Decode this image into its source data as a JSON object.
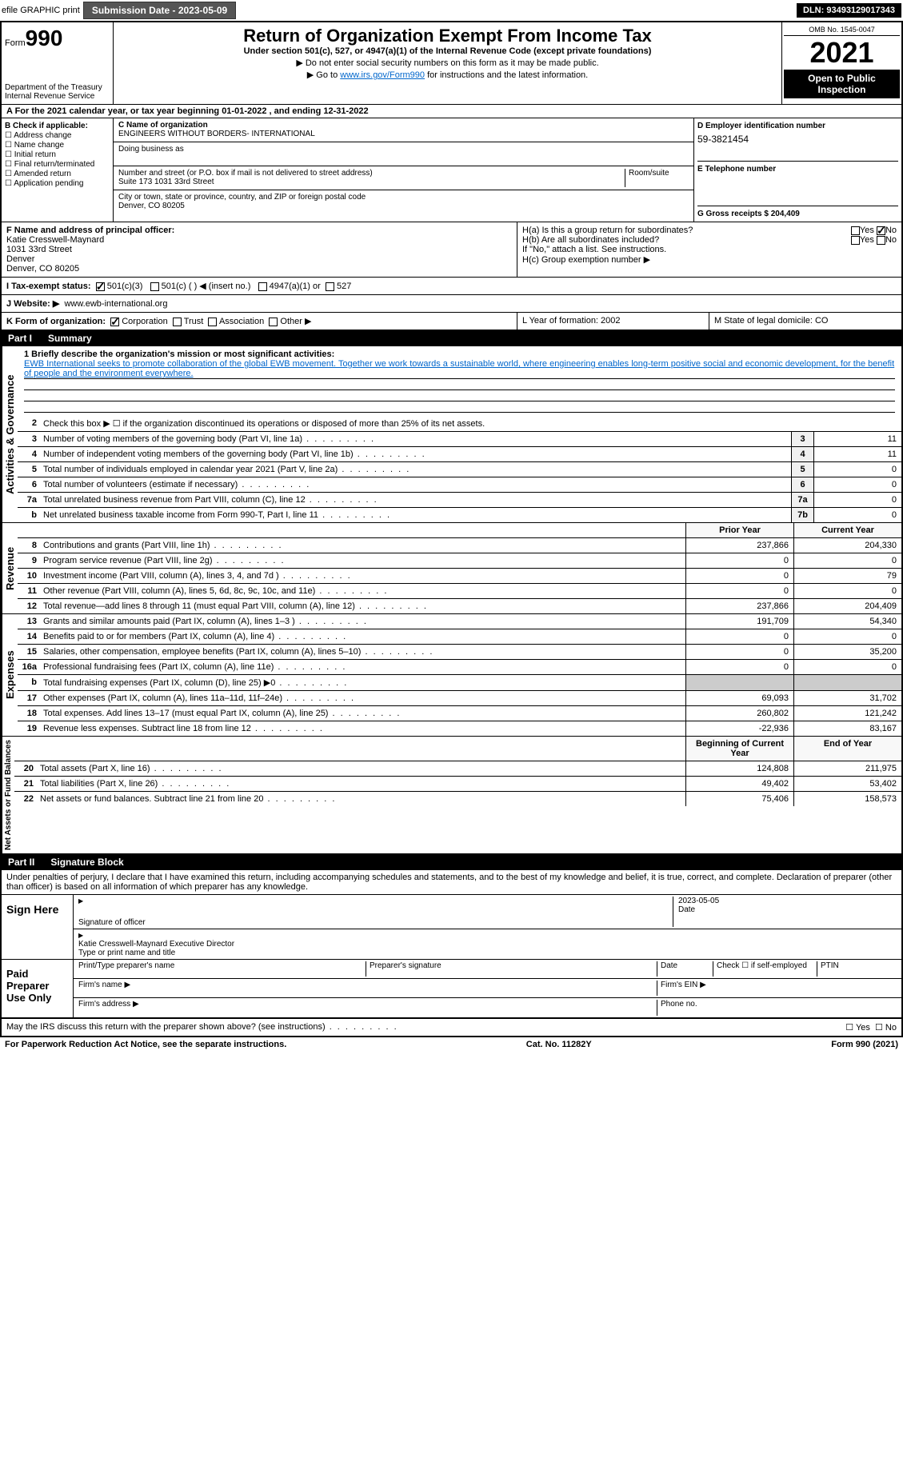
{
  "topbar": {
    "efile": "efile GRAPHIC print",
    "submission_label": "Submission Date - 2023-05-09",
    "dln_label": "DLN: 93493129017343"
  },
  "header": {
    "form_prefix": "Form",
    "form_number": "990",
    "dept1": "Department of the Treasury",
    "dept2": "Internal Revenue Service",
    "title": "Return of Organization Exempt From Income Tax",
    "subtitle": "Under section 501(c), 527, or 4947(a)(1) of the Internal Revenue Code (except private foundations)",
    "note1": "▶ Do not enter social security numbers on this form as it may be made public.",
    "note2_pre": "▶ Go to ",
    "note2_link": "www.irs.gov/Form990",
    "note2_post": " for instructions and the latest information.",
    "omb": "OMB No. 1545-0047",
    "year": "2021",
    "open": "Open to Public Inspection"
  },
  "row_a": "A For the 2021 calendar year, or tax year beginning 01-01-2022    , and ending 12-31-2022",
  "col_b": {
    "header": "B Check if applicable:",
    "opts": [
      "☐ Address change",
      "☐ Name change",
      "☐ Initial return",
      "☐ Final return/terminated",
      "☐ Amended return",
      "☐ Application pending"
    ]
  },
  "col_c": {
    "name_label": "C Name of organization",
    "name": "ENGINEERS WITHOUT BORDERS- INTERNATIONAL",
    "dba_label": "Doing business as",
    "addr_label": "Number and street (or P.O. box if mail is not delivered to street address)",
    "room_label": "Room/suite",
    "addr": "Suite 173 1031 33rd Street",
    "city_label": "City or town, state or province, country, and ZIP or foreign postal code",
    "city": "Denver, CO  80205"
  },
  "col_d": {
    "d_label": "D Employer identification number",
    "ein": "59-3821454",
    "e_label": "E Telephone number",
    "g_label": "G Gross receipts $ 204,409"
  },
  "col_f": {
    "label": "F  Name and address of principal officer:",
    "name": "Katie Cresswell-Maynard",
    "addr1": "1031 33rd Street",
    "addr2": "Denver",
    "addr3": "Denver, CO  80205"
  },
  "col_h": {
    "ha": "H(a)  Is this a group return for subordinates?",
    "hb": "H(b)  Are all subordinates included?",
    "hb_note": "If \"No,\" attach a list. See instructions.",
    "hc": "H(c)  Group exemption number ▶",
    "yes": "Yes",
    "no": "No"
  },
  "row_i": {
    "label": "I    Tax-exempt status:",
    "o1": "501(c)(3)",
    "o2": "501(c) (  ) ◀ (insert no.)",
    "o3": "4947(a)(1) or",
    "o4": "527"
  },
  "row_j": {
    "label": "J   Website: ▶",
    "val": "www.ewb-international.org"
  },
  "row_k": {
    "label": "K Form of organization:",
    "corp": "Corporation",
    "trust": "Trust",
    "assoc": "Association",
    "other": "Other ▶"
  },
  "row_l": {
    "label": "L Year of formation: 2002",
    "m": "M State of legal domicile: CO"
  },
  "part1": {
    "num": "Part I",
    "title": "Summary"
  },
  "summary": {
    "l1_label": "1  Briefly describe the organization's mission or most significant activities:",
    "mission": "EWB International seeks to promote collaboration of the global EWB movement. Together we work towards a sustainable world, where engineering enables long-term positive social and economic development, for the benefit of people and the environment everywhere.",
    "l2": "Check this box ▶ ☐  if the organization discontinued its operations or disposed of more than 25% of its net assets.",
    "rows_gov": [
      {
        "n": "3",
        "t": "Number of voting members of the governing body (Part VI, line 1a)",
        "b": "3",
        "v": "11"
      },
      {
        "n": "4",
        "t": "Number of independent voting members of the governing body (Part VI, line 1b)",
        "b": "4",
        "v": "11"
      },
      {
        "n": "5",
        "t": "Total number of individuals employed in calendar year 2021 (Part V, line 2a)",
        "b": "5",
        "v": "0"
      },
      {
        "n": "6",
        "t": "Total number of volunteers (estimate if necessary)",
        "b": "6",
        "v": "0"
      },
      {
        "n": "7a",
        "t": "Total unrelated business revenue from Part VIII, column (C), line 12",
        "b": "7a",
        "v": "0"
      },
      {
        "n": "b",
        "t": "Net unrelated business taxable income from Form 990-T, Part I, line 11",
        "b": "7b",
        "v": "0"
      }
    ],
    "prior_h": "Prior Year",
    "curr_h": "Current Year",
    "rows_rev": [
      {
        "n": "8",
        "t": "Contributions and grants (Part VIII, line 1h)",
        "p": "237,866",
        "c": "204,330"
      },
      {
        "n": "9",
        "t": "Program service revenue (Part VIII, line 2g)",
        "p": "0",
        "c": "0"
      },
      {
        "n": "10",
        "t": "Investment income (Part VIII, column (A), lines 3, 4, and 7d )",
        "p": "0",
        "c": "79"
      },
      {
        "n": "11",
        "t": "Other revenue (Part VIII, column (A), lines 5, 6d, 8c, 9c, 10c, and 11e)",
        "p": "0",
        "c": "0"
      },
      {
        "n": "12",
        "t": "Total revenue—add lines 8 through 11 (must equal Part VIII, column (A), line 12)",
        "p": "237,866",
        "c": "204,409"
      }
    ],
    "rows_exp": [
      {
        "n": "13",
        "t": "Grants and similar amounts paid (Part IX, column (A), lines 1–3 )",
        "p": "191,709",
        "c": "54,340"
      },
      {
        "n": "14",
        "t": "Benefits paid to or for members (Part IX, column (A), line 4)",
        "p": "0",
        "c": "0"
      },
      {
        "n": "15",
        "t": "Salaries, other compensation, employee benefits (Part IX, column (A), lines 5–10)",
        "p": "0",
        "c": "35,200"
      },
      {
        "n": "16a",
        "t": "Professional fundraising fees (Part IX, column (A), line 11e)",
        "p": "0",
        "c": "0"
      },
      {
        "n": "b",
        "t": "Total fundraising expenses (Part IX, column (D), line 25) ▶0",
        "p": "",
        "c": "",
        "gray": true
      },
      {
        "n": "17",
        "t": "Other expenses (Part IX, column (A), lines 11a–11d, 11f–24e)",
        "p": "69,093",
        "c": "31,702"
      },
      {
        "n": "18",
        "t": "Total expenses. Add lines 13–17 (must equal Part IX, column (A), line 25)",
        "p": "260,802",
        "c": "121,242"
      },
      {
        "n": "19",
        "t": "Revenue less expenses. Subtract line 18 from line 12",
        "p": "-22,936",
        "c": "83,167"
      }
    ],
    "bocy": "Beginning of Current Year",
    "eoy": "End of Year",
    "rows_net": [
      {
        "n": "20",
        "t": "Total assets (Part X, line 16)",
        "p": "124,808",
        "c": "211,975"
      },
      {
        "n": "21",
        "t": "Total liabilities (Part X, line 26)",
        "p": "49,402",
        "c": "53,402"
      },
      {
        "n": "22",
        "t": "Net assets or fund balances. Subtract line 21 from line 20",
        "p": "75,406",
        "c": "158,573"
      }
    ]
  },
  "side_labels": {
    "gov": "Activities & Governance",
    "rev": "Revenue",
    "exp": "Expenses",
    "net": "Net Assets or Fund Balances"
  },
  "part2": {
    "num": "Part II",
    "title": "Signature Block"
  },
  "sig": {
    "declaration": "Under penalties of perjury, I declare that I have examined this return, including accompanying schedules and statements, and to the best of my knowledge and belief, it is true, correct, and complete. Declaration of preparer (other than officer) is based on all information of which preparer has any knowledge.",
    "sign_here": "Sign Here",
    "sig_officer": "Signature of officer",
    "sig_date": "2023-05-05",
    "date_lbl": "Date",
    "typed_name": "Katie Cresswell-Maynard Executive Director",
    "typed_lbl": "Type or print name and title",
    "paid": "Paid Preparer Use Only",
    "print_name": "Print/Type preparer's name",
    "prep_sig": "Preparer's signature",
    "date2": "Date",
    "check_self": "Check ☐ if self-employed",
    "ptin": "PTIN",
    "firm_name": "Firm's name   ▶",
    "firm_ein": "Firm's EIN ▶",
    "firm_addr": "Firm's address ▶",
    "phone": "Phone no.",
    "may_irs": "May the IRS discuss this return with the preparer shown above? (see instructions)",
    "yes": "☐ Yes",
    "no": "☐ No"
  },
  "footer": {
    "left": "For Paperwork Reduction Act Notice, see the separate instructions.",
    "mid": "Cat. No. 11282Y",
    "right": "Form 990 (2021)"
  }
}
